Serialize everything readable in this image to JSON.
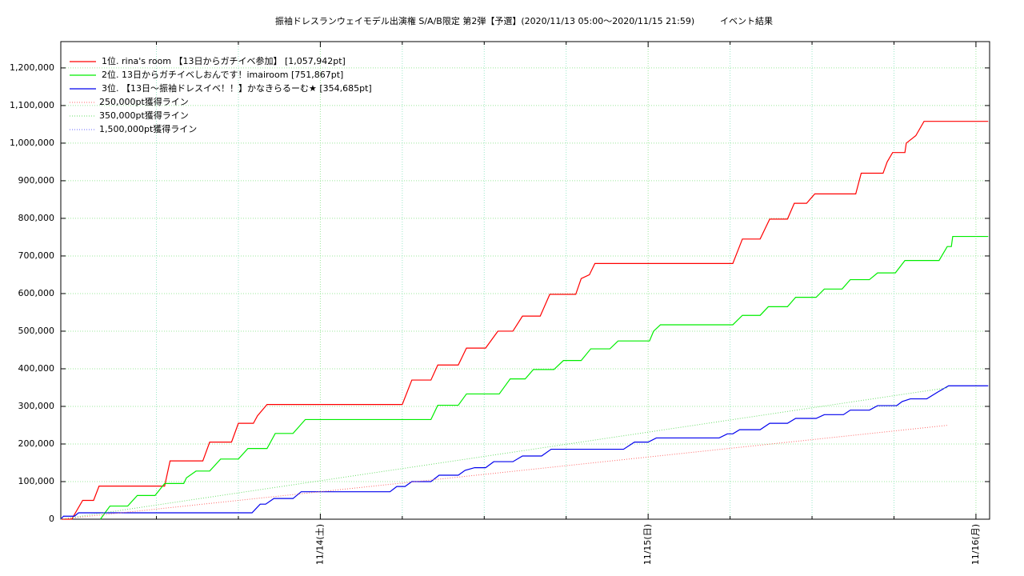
{
  "chart_data": {
    "type": "line",
    "title": "振袖ドレスランウェイモデル出演権 S/A/B限定 第2弾【予選】(2020/11/13 05:00〜2020/11/15 21:59)",
    "subtitle": "イベント結果",
    "xlim": [
      5,
      73
    ],
    "xticks": [
      {
        "value": 24,
        "label": "11/14(土)"
      },
      {
        "value": 48,
        "label": "11/15(日)"
      },
      {
        "value": 72,
        "label": "11/16(月)"
      }
    ],
    "xminor_ticks": [
      12,
      18,
      30,
      36,
      42,
      54,
      60,
      66
    ],
    "ylim": [
      0,
      1270000
    ],
    "yticks": [
      {
        "value": 0,
        "label": "0"
      },
      {
        "value": 100000,
        "label": "100,000"
      },
      {
        "value": 200000,
        "label": "200,000"
      },
      {
        "value": 300000,
        "label": "300,000"
      },
      {
        "value": 400000,
        "label": "400,000"
      },
      {
        "value": 500000,
        "label": "500,000"
      },
      {
        "value": 600000,
        "label": "600,000"
      },
      {
        "value": 700000,
        "label": "700,000"
      },
      {
        "value": 800000,
        "label": "800,000"
      },
      {
        "value": 900000,
        "label": "900,000"
      },
      {
        "value": 1000000,
        "label": "1,000,000"
      },
      {
        "value": 1100000,
        "label": "1,100,000"
      },
      {
        "value": 1200000,
        "label": "1,200,000"
      }
    ],
    "grid": true,
    "legend": "top-left",
    "series": [
      {
        "name": "1位. rina's room 【13日からガチイベ参加】 [1,057,942pt]",
        "color": "#ff0000",
        "style": "solid",
        "x": [
          5,
          5.8,
          6.6,
          7.4,
          7.8,
          12.6,
          13.0,
          15.4,
          15.9,
          17.5,
          18.0,
          19.1,
          19.4,
          20.1,
          30.0,
          30.7,
          32.1,
          32.6,
          34.1,
          34.7,
          36.1,
          37.0,
          38.1,
          38.8,
          40.1,
          40.8,
          42.7,
          43.1,
          43.7,
          44.1,
          54.2,
          54.9,
          56.2,
          56.9,
          58.2,
          58.7,
          59.6,
          60.2,
          63.2,
          63.6,
          65.2,
          65.5,
          65.9,
          66.8,
          66.9,
          67.6,
          68.2,
          72.9
        ],
        "values": [
          0,
          0,
          50000,
          50000,
          88000,
          88000,
          155000,
          155000,
          205000,
          205000,
          255000,
          255000,
          275000,
          305000,
          305000,
          370000,
          370000,
          410000,
          410000,
          455000,
          455000,
          500000,
          500000,
          540000,
          540000,
          598000,
          598000,
          640000,
          650000,
          680000,
          680000,
          745000,
          745000,
          798000,
          798000,
          840000,
          840000,
          865000,
          865000,
          920000,
          920000,
          950000,
          975000,
          975000,
          1000000,
          1020000,
          1057942,
          1057942
        ]
      },
      {
        "name": "2位. 13日からガチイベしおんです！imairoom [751,867pt]",
        "color": "#00ee00",
        "style": "solid",
        "x": [
          7.9,
          8.6,
          9.9,
          10.6,
          11.9,
          12.6,
          14.0,
          14.2,
          14.9,
          15.9,
          16.7,
          18.0,
          18.7,
          20.1,
          20.7,
          22.0,
          22.9,
          32.1,
          32.6,
          34.1,
          34.7,
          37.1,
          37.9,
          39.0,
          39.6,
          41.1,
          41.8,
          43.1,
          43.8,
          45.2,
          45.8,
          48.1,
          48.4,
          48.9,
          54.2,
          54.9,
          56.2,
          56.8,
          58.2,
          58.8,
          60.3,
          60.9,
          62.2,
          62.8,
          64.2,
          64.8,
          66.1,
          66.8,
          69.3,
          69.9,
          70.2,
          70.3,
          72.9
        ],
        "values": [
          0,
          35000,
          35000,
          63000,
          63000,
          95000,
          95000,
          110000,
          128000,
          128000,
          160000,
          160000,
          188000,
          188000,
          228000,
          228000,
          265000,
          265000,
          303000,
          303000,
          333000,
          333000,
          373000,
          373000,
          398000,
          398000,
          422000,
          422000,
          453000,
          453000,
          474000,
          474000,
          500000,
          517000,
          517000,
          542000,
          542000,
          565000,
          565000,
          590000,
          590000,
          612000,
          612000,
          637000,
          637000,
          655000,
          655000,
          688000,
          688000,
          725000,
          725000,
          751867,
          751867
        ]
      },
      {
        "name": "3位. 【13日〜振袖ドレスイベ！！】かなきらるーむ★ [354,685pt]",
        "color": "#0000ee",
        "style": "solid",
        "x": [
          5,
          5.2,
          6.0,
          6.3,
          19.0,
          19.6,
          20.0,
          20.6,
          22.0,
          22.6,
          29.1,
          29.6,
          30.2,
          30.7,
          32.1,
          32.7,
          34.1,
          34.6,
          35.3,
          36.1,
          36.7,
          38.1,
          38.8,
          40.2,
          40.9,
          46.2,
          47.0,
          48.0,
          48.6,
          53.2,
          53.8,
          54.2,
          54.7,
          56.2,
          56.9,
          58.2,
          58.8,
          60.3,
          60.9,
          62.3,
          62.8,
          64.2,
          64.8,
          66.2,
          66.6,
          67.2,
          68.4,
          69.2,
          70.0,
          72.9
        ],
        "values": [
          0,
          8000,
          8000,
          17000,
          17000,
          40000,
          40000,
          55000,
          55000,
          73000,
          73000,
          87000,
          87000,
          100000,
          100000,
          117000,
          117000,
          130000,
          137000,
          137000,
          153000,
          153000,
          168000,
          168000,
          186000,
          186000,
          205000,
          205000,
          216000,
          216000,
          227000,
          227000,
          238000,
          238000,
          255000,
          255000,
          268000,
          268000,
          278000,
          278000,
          290000,
          290000,
          302000,
          302000,
          313000,
          320000,
          320000,
          338000,
          354685,
          354685
        ]
      },
      {
        "name": "250,000pt獲得ライン",
        "color": "#ff6666",
        "style": "dotted",
        "x": [
          5,
          70
        ],
        "values": [
          0,
          250000
        ]
      },
      {
        "name": "350,000pt獲得ライン",
        "color": "#66dd66",
        "style": "dotted",
        "x": [
          5,
          70
        ],
        "values": [
          0,
          350000
        ]
      },
      {
        "name": "1,500,000pt獲得ライン",
        "color": "#6666ff",
        "style": "dotted",
        "x": [],
        "values": []
      }
    ]
  }
}
